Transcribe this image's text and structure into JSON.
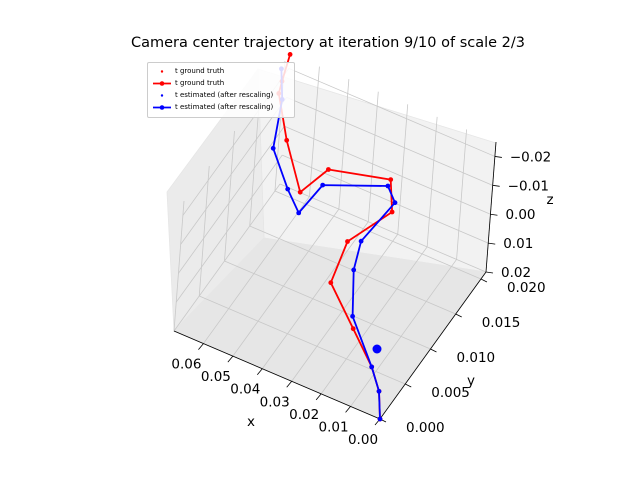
{
  "chart_data": {
    "type": "line",
    "title": "Camera center trajectory at iteration 9/10 of scale 2/3",
    "xlabel": "x",
    "ylabel": "y",
    "zlabel": "z",
    "xlim": [
      0.0,
      0.07
    ],
    "ylim": [
      0.0,
      0.021
    ],
    "zlim": [
      0.02,
      -0.025
    ],
    "x_ticks": [
      "0.06",
      "0.05",
      "0.04",
      "0.03",
      "0.02",
      "0.01",
      "0.00"
    ],
    "y_ticks": [
      "0.000",
      "0.005",
      "0.010",
      "0.015",
      "0.020"
    ],
    "z_ticks": [
      "−0.02",
      "−0.01",
      "0.00",
      "0.01",
      "0.02"
    ],
    "grid": true,
    "legend_position": "top-left",
    "legend": [
      "t ground truth",
      "t ground truth",
      "t estimated (after rescaling)",
      "t estimated (after rescaling)"
    ],
    "series": [
      {
        "name": "t ground truth",
        "color": "#ff0000",
        "points": [
          [
            0.0,
            0.0,
            0.02
          ],
          [
            0.004,
            0.002,
            0.017
          ],
          [
            0.01,
            0.004,
            0.016
          ],
          [
            0.02,
            0.006,
            0.012
          ],
          [
            0.033,
            0.009,
            0.009
          ],
          [
            0.033,
            0.012,
            0.002
          ],
          [
            0.025,
            0.016,
            -0.002
          ],
          [
            0.03,
            0.0185,
            -0.005
          ],
          [
            0.05,
            0.018,
            -0.001
          ],
          [
            0.055,
            0.0155,
            0.003
          ],
          [
            0.06,
            0.015,
            -0.014
          ],
          [
            0.066,
            0.0165,
            -0.024
          ],
          [
            0.066,
            0.017,
            -0.027
          ],
          [
            0.067,
            0.019,
            -0.031
          ]
        ]
      },
      {
        "name": "t estimated (after rescaling)",
        "color": "#0000ff",
        "points": [
          [
            0.0,
            0.0,
            0.02
          ],
          [
            0.004,
            0.002,
            0.017
          ],
          [
            0.01,
            0.004,
            0.016
          ],
          [
            0.022,
            0.007,
            0.011
          ],
          [
            0.028,
            0.0105,
            0.006
          ],
          [
            0.03,
            0.013,
            0.003
          ],
          [
            0.025,
            0.0165,
            -0.004
          ],
          [
            0.03,
            0.018,
            -0.004
          ],
          [
            0.05,
            0.017,
            0.002
          ],
          [
            0.052,
            0.0135,
            0.004
          ],
          [
            0.054,
            0.012,
            -0.007
          ],
          [
            0.062,
            0.0135,
            -0.014
          ],
          [
            0.064,
            0.016,
            -0.024
          ],
          [
            0.068,
            0.018,
            -0.028
          ]
        ]
      }
    ]
  }
}
